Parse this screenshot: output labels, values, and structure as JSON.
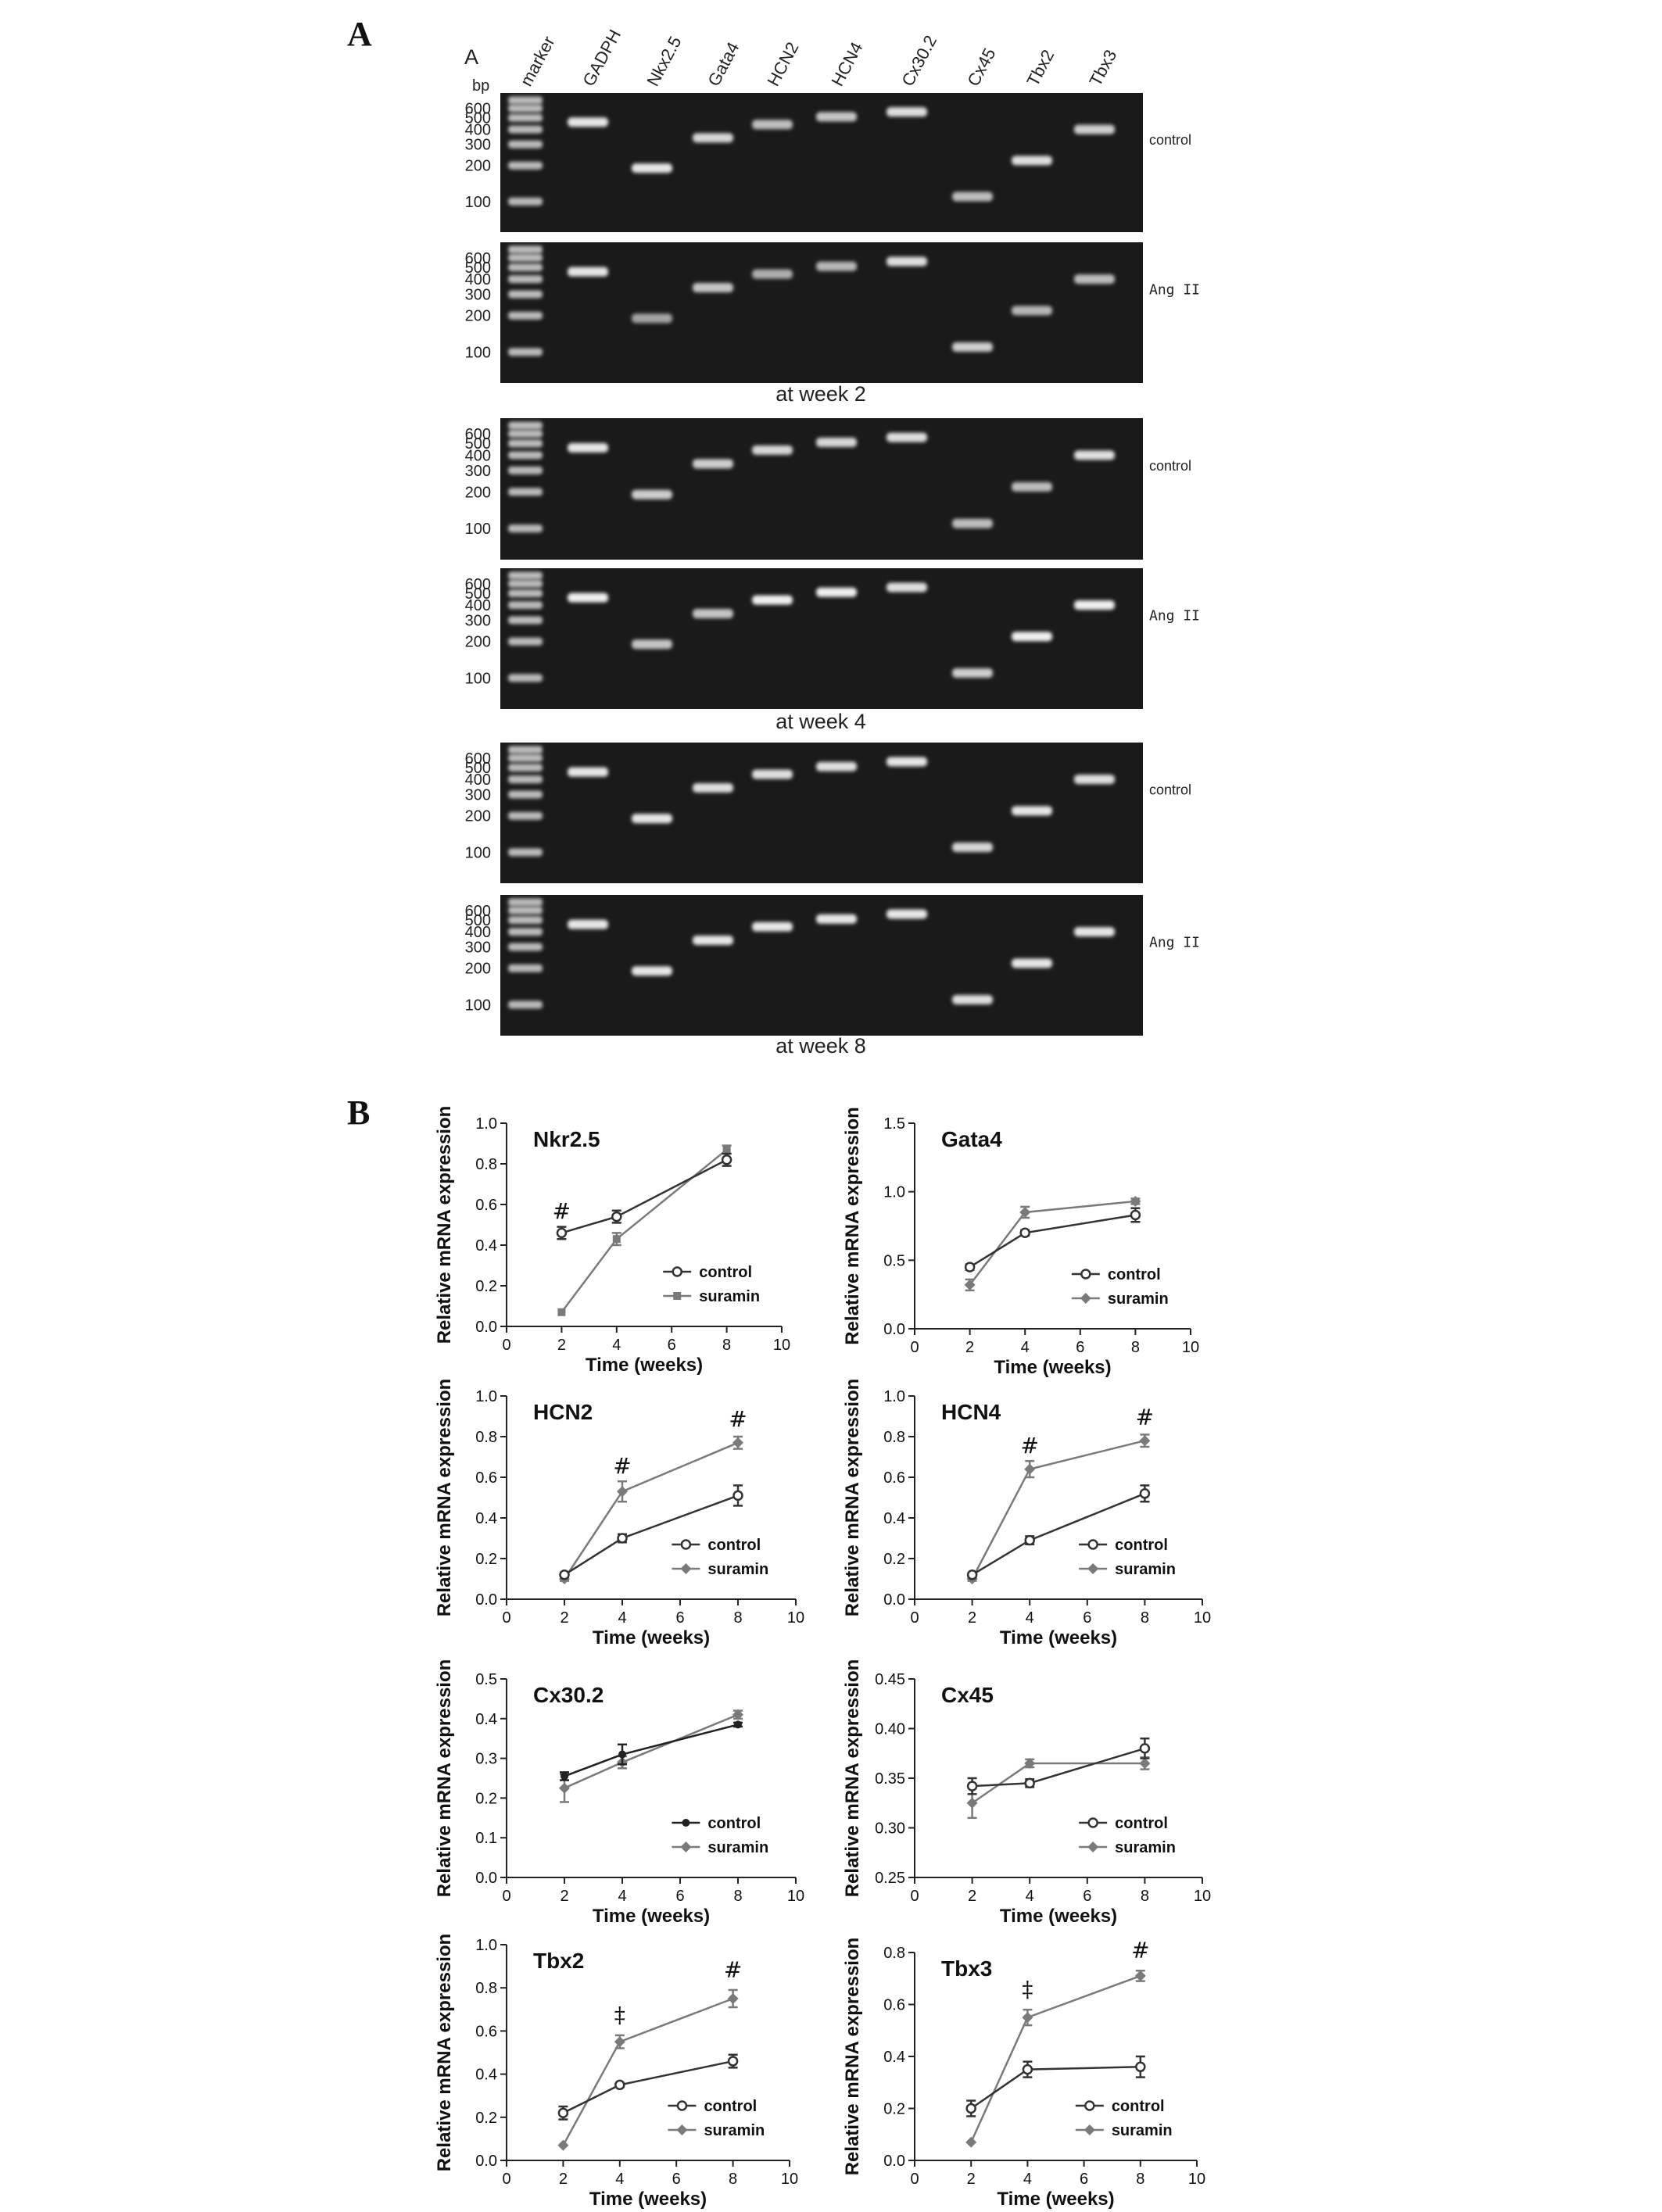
{
  "panels": {
    "a": "A",
    "b": "B"
  },
  "gel": {
    "inner_label": "A",
    "bp_label": "bp",
    "lane_labels": [
      "marker",
      "GADPH",
      "Nkx2.5",
      "Gata4",
      "HCN2",
      "HCN4",
      "Cx30.2",
      "Cx45",
      "Tbx2",
      "Tbx3"
    ],
    "marker_sizes": [
      "600",
      "500",
      "400",
      "300",
      "200",
      "100"
    ],
    "group_labels": [
      "control",
      "Ang II"
    ],
    "band_bp": [
      460,
      190,
      340,
      440,
      510,
      560,
      110,
      220,
      400
    ],
    "timepoints": [
      "at week 2",
      "at week 4",
      "at week 8"
    ],
    "band_brightness": [
      [
        0.85,
        0.85,
        0.75,
        0.6,
        0.65,
        0.8,
        0.6,
        0.8,
        0.7
      ],
      [
        0.85,
        0.45,
        0.65,
        0.5,
        0.55,
        0.8,
        0.7,
        0.55,
        0.6
      ],
      [
        0.85,
        0.7,
        0.7,
        0.75,
        0.75,
        0.8,
        0.6,
        0.6,
        0.8
      ],
      [
        0.9,
        0.65,
        0.65,
        0.9,
        0.9,
        0.8,
        0.7,
        0.9,
        0.9
      ],
      [
        0.85,
        0.85,
        0.8,
        0.8,
        0.8,
        0.85,
        0.75,
        0.85,
        0.8
      ],
      [
        0.85,
        0.85,
        0.85,
        0.85,
        0.85,
        0.85,
        0.8,
        0.85,
        0.85
      ]
    ]
  },
  "chart_data": [
    {
      "type": "line",
      "title": "Nkr2.5",
      "xlabel": "Time (weeks)",
      "ylabel": "Relative mRNA expression",
      "xlim": [
        0,
        10
      ],
      "xticks": [
        0,
        2,
        4,
        6,
        8,
        10
      ],
      "ylim": [
        0,
        1.0
      ],
      "yticks": [
        "0.0",
        "0.2",
        "0.4",
        "0.6",
        "0.8",
        "1.0"
      ],
      "legend_position": "bottom-right",
      "series": [
        {
          "name": "control",
          "marker": "circle-open",
          "color": "#333333",
          "x": [
            2,
            4,
            8
          ],
          "y": [
            0.46,
            0.54,
            0.82
          ],
          "err": [
            0.03,
            0.03,
            0.03
          ]
        },
        {
          "name": "suramin",
          "marker": "square",
          "color": "#7a7a7a",
          "x": [
            2,
            4,
            8
          ],
          "y": [
            0.07,
            0.43,
            0.87
          ],
          "err": [
            0,
            0.03,
            0.02
          ]
        }
      ],
      "annotations": [
        {
          "text": "#",
          "x": 2,
          "y": 0.53
        }
      ]
    },
    {
      "type": "line",
      "title": "Gata4",
      "xlabel": "Time (weeks)",
      "ylabel": "Relative mRNA expression",
      "xlim": [
        0,
        10
      ],
      "xticks": [
        0,
        2,
        4,
        6,
        8,
        10
      ],
      "ylim": [
        0,
        1.5
      ],
      "yticks": [
        "0.0",
        "0.5",
        "1.0",
        "1.5"
      ],
      "legend_position": "bottom-right",
      "series": [
        {
          "name": "control",
          "marker": "circle-open",
          "color": "#333333",
          "x": [
            2,
            4,
            8
          ],
          "y": [
            0.45,
            0.7,
            0.83
          ],
          "err": [
            0.02,
            0.02,
            0.05
          ]
        },
        {
          "name": "suramin",
          "marker": "diamond",
          "color": "#7a7a7a",
          "x": [
            2,
            4,
            8
          ],
          "y": [
            0.32,
            0.85,
            0.93
          ],
          "err": [
            0.04,
            0.04,
            0.02
          ]
        }
      ],
      "annotations": []
    },
    {
      "type": "line",
      "title": "HCN2",
      "xlabel": "Time (weeks)",
      "ylabel": "Relative mRNA expression",
      "xlim": [
        0,
        10
      ],
      "xticks": [
        0,
        2,
        4,
        6,
        8,
        10
      ],
      "ylim": [
        0,
        1.0
      ],
      "yticks": [
        "0.0",
        "0.2",
        "0.4",
        "0.6",
        "0.8",
        "1.0"
      ],
      "legend_position": "bottom-right",
      "series": [
        {
          "name": "control",
          "marker": "circle-open",
          "color": "#333333",
          "x": [
            2,
            4,
            8
          ],
          "y": [
            0.12,
            0.3,
            0.51
          ],
          "err": [
            0.01,
            0.02,
            0.05
          ]
        },
        {
          "name": "suramin",
          "marker": "diamond",
          "color": "#7a7a7a",
          "x": [
            2,
            4,
            8
          ],
          "y": [
            0.1,
            0.53,
            0.77
          ],
          "err": [
            0.01,
            0.05,
            0.03
          ]
        }
      ],
      "annotations": [
        {
          "text": "#",
          "x": 4,
          "y": 0.62
        },
        {
          "text": "#",
          "x": 8,
          "y": 0.85
        }
      ]
    },
    {
      "type": "line",
      "title": "HCN4",
      "xlabel": "Time (weeks)",
      "ylabel": "Relative mRNA expression",
      "xlim": [
        0,
        10
      ],
      "xticks": [
        0,
        2,
        4,
        6,
        8,
        10
      ],
      "ylim": [
        0,
        1.0
      ],
      "yticks": [
        "0.0",
        "0.2",
        "0.4",
        "0.6",
        "0.8",
        "1.0"
      ],
      "legend_position": "bottom-right",
      "series": [
        {
          "name": "control",
          "marker": "circle-open",
          "color": "#333333",
          "x": [
            2,
            4,
            8
          ],
          "y": [
            0.12,
            0.29,
            0.52
          ],
          "err": [
            0.01,
            0.02,
            0.04
          ]
        },
        {
          "name": "suramin",
          "marker": "diamond",
          "color": "#7a7a7a",
          "x": [
            2,
            4,
            8
          ],
          "y": [
            0.1,
            0.64,
            0.78
          ],
          "err": [
            0.01,
            0.04,
            0.03
          ]
        }
      ],
      "annotations": [
        {
          "text": "#",
          "x": 4,
          "y": 0.72
        },
        {
          "text": "#",
          "x": 8,
          "y": 0.86
        }
      ]
    },
    {
      "type": "line",
      "title": "Cx30.2",
      "xlabel": "Time (weeks)",
      "ylabel": "Relative mRNA expression",
      "xlim": [
        0,
        10
      ],
      "xticks": [
        0,
        2,
        4,
        6,
        8,
        10
      ],
      "ylim": [
        0,
        0.5
      ],
      "yticks": [
        "0.0",
        "0.1",
        "0.2",
        "0.3",
        "0.4",
        "0.5"
      ],
      "legend_position": "bottom-right",
      "series": [
        {
          "name": "control",
          "marker": "circle-filled",
          "color": "#222222",
          "x": [
            2,
            4,
            8
          ],
          "y": [
            0.255,
            0.31,
            0.385
          ],
          "err": [
            0.01,
            0.025,
            0.005
          ]
        },
        {
          "name": "suramin",
          "marker": "diamond",
          "color": "#7a7a7a",
          "x": [
            2,
            4,
            8
          ],
          "y": [
            0.225,
            0.29,
            0.41
          ],
          "err": [
            0.035,
            0.015,
            0.01
          ]
        }
      ],
      "annotations": []
    },
    {
      "type": "line",
      "title": "Cx45",
      "xlabel": "Time (weeks)",
      "ylabel": "Relative mRNA expression",
      "xlim": [
        0,
        10
      ],
      "xticks": [
        0,
        2,
        4,
        6,
        8,
        10
      ],
      "ylim": [
        0.25,
        0.45
      ],
      "yticks": [
        "0.25",
        "0.30",
        "0.35",
        "0.40",
        "0.45"
      ],
      "legend_position": "bottom-right",
      "series": [
        {
          "name": "control",
          "marker": "circle-open",
          "color": "#333333",
          "x": [
            2,
            4,
            8
          ],
          "y": [
            0.342,
            0.345,
            0.38
          ],
          "err": [
            0.008,
            0.004,
            0.01
          ]
        },
        {
          "name": "suramin",
          "marker": "diamond",
          "color": "#7a7a7a",
          "x": [
            2,
            4,
            8
          ],
          "y": [
            0.325,
            0.365,
            0.365
          ],
          "err": [
            0.015,
            0.004,
            0.006
          ]
        }
      ],
      "annotations": []
    },
    {
      "type": "line",
      "title": "Tbx2",
      "xlabel": "Time (weeks)",
      "ylabel": "Relative mRNA expression",
      "xlim": [
        0,
        10
      ],
      "xticks": [
        0,
        2,
        4,
        6,
        8,
        10
      ],
      "ylim": [
        0,
        1.0
      ],
      "yticks": [
        "0.0",
        "0.2",
        "0.4",
        "0.6",
        "0.8",
        "1.0"
      ],
      "legend_position": "bottom-right",
      "series": [
        {
          "name": "control",
          "marker": "circle-open",
          "color": "#333333",
          "x": [
            2,
            4,
            8
          ],
          "y": [
            0.22,
            0.35,
            0.46
          ],
          "err": [
            0.03,
            0.01,
            0.03
          ]
        },
        {
          "name": "suramin",
          "marker": "diamond",
          "color": "#7a7a7a",
          "x": [
            2,
            4,
            8
          ],
          "y": [
            0.07,
            0.55,
            0.75
          ],
          "err": [
            0,
            0.03,
            0.04
          ]
        }
      ],
      "annotations": [
        {
          "text": "‡",
          "x": 4,
          "y": 0.64
        },
        {
          "text": "#",
          "x": 8,
          "y": 0.85
        }
      ]
    },
    {
      "type": "line",
      "title": "Tbx3",
      "xlabel": "Time (weeks)",
      "ylabel": "Relative mRNA expression",
      "xlim": [
        0,
        10
      ],
      "xticks": [
        0,
        2,
        4,
        6,
        8,
        10
      ],
      "ylim": [
        0,
        0.8
      ],
      "yticks": [
        "0.0",
        "0.2",
        "0.4",
        "0.6",
        "0.8"
      ],
      "legend_position": "bottom-right",
      "series": [
        {
          "name": "control",
          "marker": "circle-open",
          "color": "#333333",
          "x": [
            2,
            4,
            8
          ],
          "y": [
            0.2,
            0.35,
            0.36
          ],
          "err": [
            0.03,
            0.03,
            0.04
          ]
        },
        {
          "name": "suramin",
          "marker": "diamond",
          "color": "#7a7a7a",
          "x": [
            2,
            4,
            8
          ],
          "y": [
            0.07,
            0.55,
            0.71
          ],
          "err": [
            0,
            0.03,
            0.02
          ]
        }
      ],
      "annotations": [
        {
          "text": "‡",
          "x": 4,
          "y": 0.63
        },
        {
          "text": "#",
          "x": 8,
          "y": 0.78
        }
      ]
    }
  ]
}
